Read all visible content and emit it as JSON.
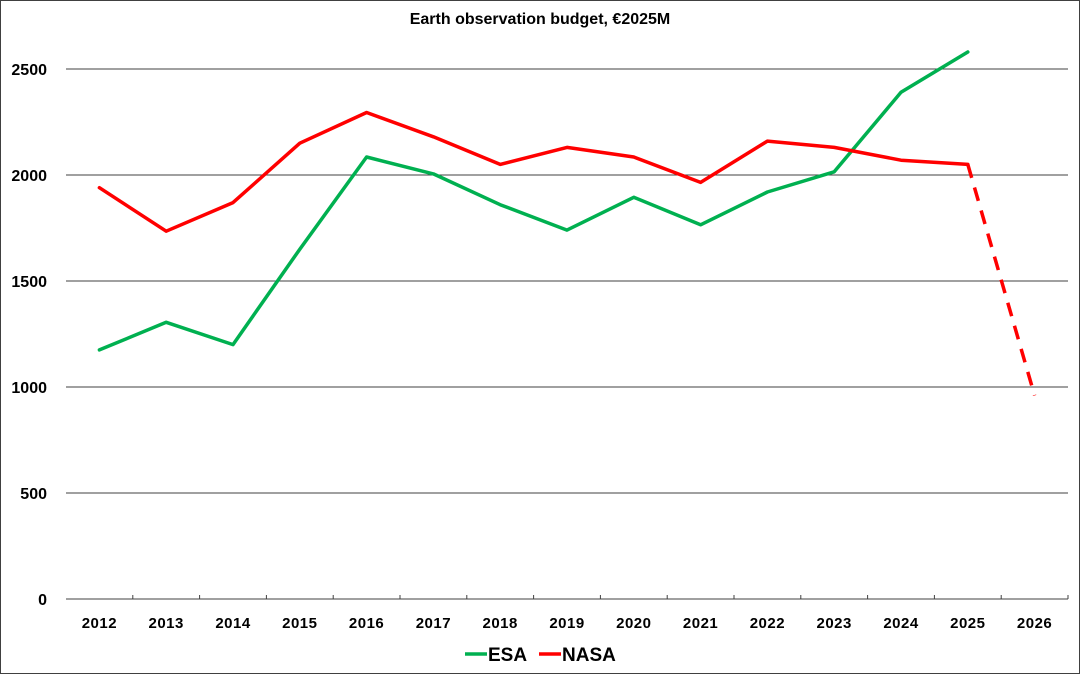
{
  "chart_data": {
    "type": "line",
    "title": "Earth observation budget, €2025M",
    "xlabel": "",
    "ylabel": "",
    "x": [
      "2012",
      "2013",
      "2014",
      "2015",
      "2016",
      "2017",
      "2018",
      "2019",
      "2020",
      "2021",
      "2022",
      "2023",
      "2024",
      "2025",
      "2026"
    ],
    "ylim": [
      0,
      2600
    ],
    "yticks": [
      0,
      500,
      1000,
      1500,
      2000,
      2500
    ],
    "ytick_labels": [
      "0",
      "500",
      "1000",
      "1500",
      "2000",
      "2500"
    ],
    "grid": true,
    "legend_position": "bottom-center",
    "series": [
      {
        "name": "ESA",
        "color": "#00B050",
        "values": [
          1175,
          1305,
          1200,
          1650,
          2085,
          2005,
          1860,
          1740,
          1895,
          1765,
          1920,
          2015,
          2390,
          2580,
          null
        ]
      },
      {
        "name": "NASA",
        "color": "#FF0000",
        "values": [
          1940,
          1735,
          1870,
          2150,
          2295,
          2180,
          2050,
          2130,
          2085,
          1965,
          2160,
          2130,
          2070,
          2050,
          960
        ],
        "dashed_from_index": 13
      }
    ]
  }
}
